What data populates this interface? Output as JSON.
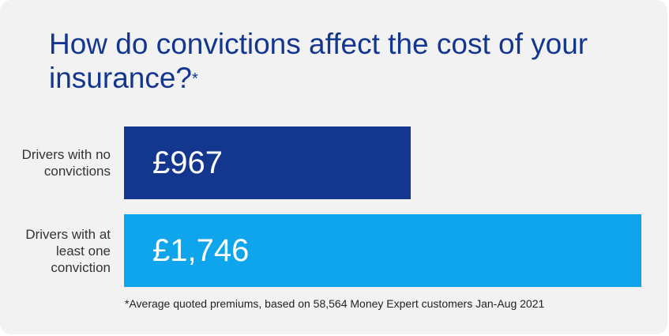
{
  "chart_data": {
    "type": "bar",
    "orientation": "horizontal",
    "title": "How do convictions affect the cost of your insurance?",
    "title_mark": "*",
    "categories": [
      "Drivers with no convictions",
      "Drivers with at least one conviction"
    ],
    "values": [
      967,
      1746
    ],
    "value_labels": [
      "£967",
      "£1,746"
    ],
    "colors": [
      "#13368f",
      "#0ea5ec"
    ],
    "footnote": "*Average quoted premiums, based on 58,564 Money Expert customers Jan-Aug 2021"
  }
}
